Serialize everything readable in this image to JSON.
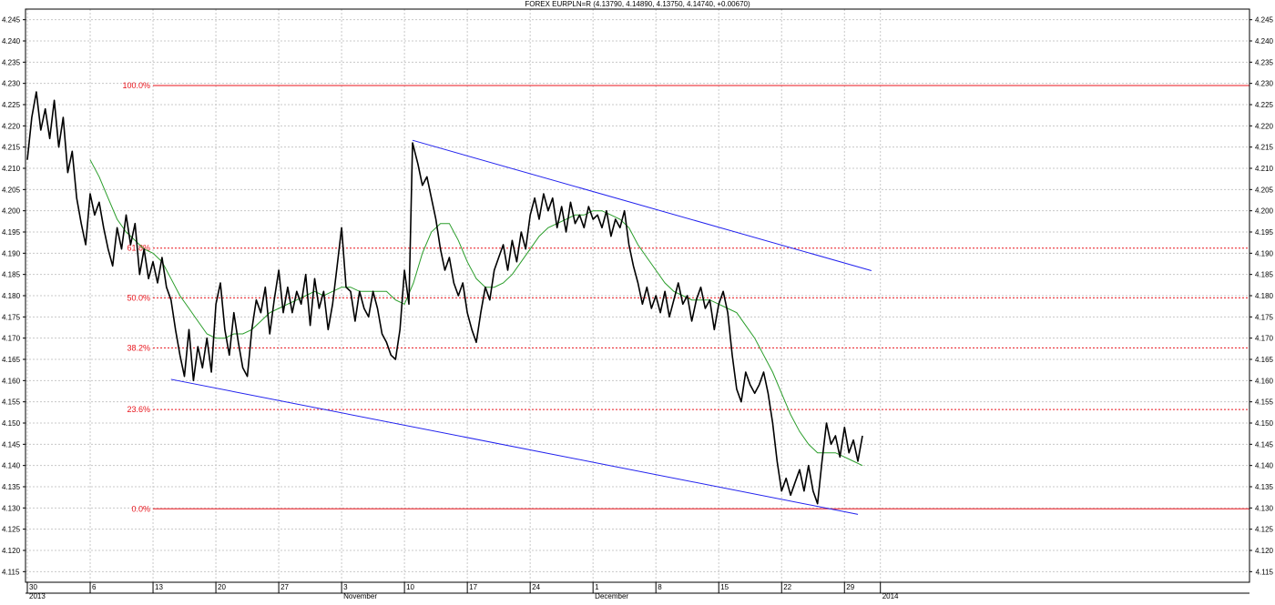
{
  "header": {
    "title": "FOREX EURPLN=R (4.13790, 4.14890, 4.13750, 4.14740, +0.00670)"
  },
  "colors": {
    "price": "#000000",
    "moving_average": "#2a9d2a",
    "channel": "#2222ee",
    "fibonacci": "#e8141c",
    "grid": "#c8c8c8",
    "background": "#ffffff"
  },
  "chart_data": {
    "type": "line",
    "title": "FOREX EURPLN=R (4.13790, 4.14890, 4.13750, 4.14740, +0.00670)",
    "xlabel": "",
    "ylabel": "",
    "ylim": [
      4.1125,
      4.2475
    ],
    "y_ticks": [
      "4.115",
      "4.120",
      "4.125",
      "4.130",
      "4.135",
      "4.140",
      "4.145",
      "4.150",
      "4.155",
      "4.160",
      "4.165",
      "4.170",
      "4.175",
      "4.180",
      "4.185",
      "4.190",
      "4.195",
      "4.200",
      "4.205",
      "4.210",
      "4.215",
      "4.220",
      "4.225",
      "4.230",
      "4.235",
      "4.240",
      "4.245"
    ],
    "x_ticks": [
      {
        "label": "30",
        "sub": "2013",
        "day": 0
      },
      {
        "label": "6",
        "sub": "",
        "day": 7
      },
      {
        "label": "13",
        "sub": "",
        "day": 14
      },
      {
        "label": "20",
        "sub": "",
        "day": 21
      },
      {
        "label": "27",
        "sub": "",
        "day": 28
      },
      {
        "label": "3",
        "sub": "November",
        "day": 35
      },
      {
        "label": "10",
        "sub": "",
        "day": 42
      },
      {
        "label": "17",
        "sub": "",
        "day": 49
      },
      {
        "label": "24",
        "sub": "",
        "day": 56
      },
      {
        "label": "1",
        "sub": "December",
        "day": 63
      },
      {
        "label": "8",
        "sub": "",
        "day": 70
      },
      {
        "label": "15",
        "sub": "",
        "day": 77
      },
      {
        "label": "22",
        "sub": "",
        "day": 84
      },
      {
        "label": "29",
        "sub": "",
        "day": 91
      },
      {
        "label": "",
        "sub": "2014",
        "day": 95
      }
    ],
    "grid": true,
    "fibonacci": [
      {
        "label": "100.0%",
        "value": 4.2295,
        "style": "solid"
      },
      {
        "label": "61.8%",
        "value": 4.1912,
        "style": "dashed"
      },
      {
        "label": "50.0%",
        "value": 4.1795,
        "style": "dashed"
      },
      {
        "label": "38.2%",
        "value": 4.1677,
        "style": "dashed"
      },
      {
        "label": "23.6%",
        "value": 4.1532,
        "style": "dashed"
      },
      {
        "label": "0.0%",
        "value": 4.1298,
        "style": "solid"
      }
    ],
    "channel_lines": [
      {
        "name": "upper",
        "points": [
          [
            42.9,
            4.2166
          ],
          [
            94.0,
            4.1859
          ]
        ]
      },
      {
        "name": "lower",
        "points": [
          [
            16.0,
            4.1603
          ],
          [
            92.5,
            4.1285
          ]
        ]
      }
    ],
    "series": [
      {
        "name": "price",
        "points": [
          [
            0.0,
            4.212
          ],
          [
            0.5,
            4.222
          ],
          [
            1.0,
            4.228
          ],
          [
            1.5,
            4.219
          ],
          [
            2.0,
            4.224
          ],
          [
            2.5,
            4.217
          ],
          [
            3.0,
            4.226
          ],
          [
            3.5,
            4.215
          ],
          [
            4.0,
            4.222
          ],
          [
            4.5,
            4.209
          ],
          [
            5.0,
            4.214
          ],
          [
            5.5,
            4.203
          ],
          [
            6.0,
            4.197
          ],
          [
            6.5,
            4.192
          ],
          [
            7.0,
            4.204
          ],
          [
            7.5,
            4.199
          ],
          [
            8.0,
            4.202
          ],
          [
            8.5,
            4.196
          ],
          [
            9.0,
            4.191
          ],
          [
            9.5,
            4.187
          ],
          [
            10.0,
            4.196
          ],
          [
            10.5,
            4.191
          ],
          [
            11.0,
            4.199
          ],
          [
            11.5,
            4.192
          ],
          [
            12.0,
            4.197
          ],
          [
            12.5,
            4.185
          ],
          [
            13.0,
            4.191
          ],
          [
            13.5,
            4.184
          ],
          [
            14.0,
            4.188
          ],
          [
            14.5,
            4.183
          ],
          [
            15.0,
            4.189
          ],
          [
            15.5,
            4.182
          ],
          [
            16.0,
            4.179
          ],
          [
            16.5,
            4.172
          ],
          [
            17.0,
            4.166
          ],
          [
            17.5,
            4.161
          ],
          [
            18.0,
            4.172
          ],
          [
            18.5,
            4.16
          ],
          [
            19.0,
            4.168
          ],
          [
            19.5,
            4.163
          ],
          [
            20.0,
            4.17
          ],
          [
            20.5,
            4.162
          ],
          [
            21.0,
            4.178
          ],
          [
            21.5,
            4.183
          ],
          [
            22.0,
            4.172
          ],
          [
            22.5,
            4.166
          ],
          [
            23.0,
            4.176
          ],
          [
            23.5,
            4.169
          ],
          [
            24.0,
            4.163
          ],
          [
            24.5,
            4.161
          ],
          [
            25.0,
            4.172
          ],
          [
            25.5,
            4.179
          ],
          [
            26.0,
            4.176
          ],
          [
            26.5,
            4.182
          ],
          [
            27.0,
            4.171
          ],
          [
            27.5,
            4.179
          ],
          [
            28.0,
            4.186
          ],
          [
            28.5,
            4.176
          ],
          [
            29.0,
            4.182
          ],
          [
            29.5,
            4.176
          ],
          [
            30.0,
            4.181
          ],
          [
            30.5,
            4.178
          ],
          [
            31.0,
            4.185
          ],
          [
            31.5,
            4.173
          ],
          [
            32.0,
            4.184
          ],
          [
            32.5,
            4.177
          ],
          [
            33.0,
            4.181
          ],
          [
            33.5,
            4.172
          ],
          [
            34.0,
            4.178
          ],
          [
            34.5,
            4.187
          ],
          [
            35.0,
            4.196
          ],
          [
            35.5,
            4.182
          ],
          [
            36.0,
            4.181
          ],
          [
            36.5,
            4.174
          ],
          [
            37.0,
            4.181
          ],
          [
            37.5,
            4.177
          ],
          [
            38.0,
            4.175
          ],
          [
            38.5,
            4.181
          ],
          [
            39.0,
            4.177
          ],
          [
            39.5,
            4.171
          ],
          [
            40.0,
            4.169
          ],
          [
            40.5,
            4.166
          ],
          [
            41.0,
            4.165
          ],
          [
            41.5,
            4.172
          ],
          [
            42.0,
            4.186
          ],
          [
            42.5,
            4.178
          ],
          [
            42.9,
            4.216
          ],
          [
            43.5,
            4.211
          ],
          [
            44.0,
            4.206
          ],
          [
            44.5,
            4.208
          ],
          [
            45.0,
            4.203
          ],
          [
            45.5,
            4.198
          ],
          [
            46.0,
            4.191
          ],
          [
            46.5,
            4.186
          ],
          [
            47.0,
            4.189
          ],
          [
            47.5,
            4.183
          ],
          [
            48.0,
            4.18
          ],
          [
            48.5,
            4.183
          ],
          [
            49.0,
            4.176
          ],
          [
            49.5,
            4.172
          ],
          [
            50.0,
            4.169
          ],
          [
            50.5,
            4.176
          ],
          [
            51.0,
            4.182
          ],
          [
            51.5,
            4.179
          ],
          [
            52.0,
            4.186
          ],
          [
            52.5,
            4.189
          ],
          [
            53.0,
            4.192
          ],
          [
            53.5,
            4.186
          ],
          [
            54.0,
            4.193
          ],
          [
            54.5,
            4.188
          ],
          [
            55.0,
            4.195
          ],
          [
            55.5,
            4.191
          ],
          [
            56.0,
            4.199
          ],
          [
            56.5,
            4.203
          ],
          [
            57.0,
            4.198
          ],
          [
            57.5,
            4.204
          ],
          [
            58.0,
            4.2
          ],
          [
            58.5,
            4.203
          ],
          [
            59.0,
            4.196
          ],
          [
            59.5,
            4.201
          ],
          [
            60.0,
            4.195
          ],
          [
            60.5,
            4.202
          ],
          [
            61.0,
            4.197
          ],
          [
            61.5,
            4.199
          ],
          [
            62.0,
            4.196
          ],
          [
            62.5,
            4.201
          ],
          [
            63.0,
            4.198
          ],
          [
            63.5,
            4.199
          ],
          [
            64.0,
            4.196
          ],
          [
            64.5,
            4.2
          ],
          [
            65.0,
            4.194
          ],
          [
            65.5,
            4.198
          ],
          [
            66.0,
            4.196
          ],
          [
            66.5,
            4.2
          ],
          [
            67.0,
            4.192
          ],
          [
            67.5,
            4.187
          ],
          [
            68.0,
            4.183
          ],
          [
            68.5,
            4.178
          ],
          [
            69.0,
            4.182
          ],
          [
            69.5,
            4.177
          ],
          [
            70.0,
            4.18
          ],
          [
            70.5,
            4.176
          ],
          [
            71.0,
            4.181
          ],
          [
            71.5,
            4.175
          ],
          [
            72.0,
            4.179
          ],
          [
            72.5,
            4.183
          ],
          [
            73.0,
            4.178
          ],
          [
            73.5,
            4.18
          ],
          [
            74.0,
            4.174
          ],
          [
            74.5,
            4.179
          ],
          [
            75.0,
            4.182
          ],
          [
            75.5,
            4.177
          ],
          [
            76.0,
            4.179
          ],
          [
            76.5,
            4.172
          ],
          [
            77.0,
            4.178
          ],
          [
            77.5,
            4.181
          ],
          [
            78.0,
            4.176
          ],
          [
            78.5,
            4.166
          ],
          [
            79.0,
            4.158
          ],
          [
            79.5,
            4.155
          ],
          [
            80.0,
            4.162
          ],
          [
            80.5,
            4.159
          ],
          [
            81.0,
            4.157
          ],
          [
            81.5,
            4.159
          ],
          [
            82.0,
            4.162
          ],
          [
            82.5,
            4.157
          ],
          [
            83.0,
            4.15
          ],
          [
            83.5,
            4.141
          ],
          [
            84.0,
            4.134
          ],
          [
            84.5,
            4.137
          ],
          [
            85.0,
            4.133
          ],
          [
            85.5,
            4.136
          ],
          [
            86.0,
            4.139
          ],
          [
            86.5,
            4.134
          ],
          [
            87.0,
            4.14
          ],
          [
            87.5,
            4.134
          ],
          [
            88.0,
            4.131
          ],
          [
            88.5,
            4.141
          ],
          [
            89.0,
            4.15
          ],
          [
            89.5,
            4.145
          ],
          [
            90.0,
            4.147
          ],
          [
            90.5,
            4.142
          ],
          [
            91.0,
            4.149
          ],
          [
            91.5,
            4.143
          ],
          [
            92.0,
            4.146
          ],
          [
            92.5,
            4.141
          ],
          [
            93.0,
            4.147
          ]
        ]
      },
      {
        "name": "moving_average",
        "points": [
          [
            7.0,
            4.212
          ],
          [
            8.0,
            4.208
          ],
          [
            9.0,
            4.203
          ],
          [
            10.0,
            4.198
          ],
          [
            11.0,
            4.195
          ],
          [
            12.0,
            4.193
          ],
          [
            13.0,
            4.191
          ],
          [
            14.0,
            4.19
          ],
          [
            15.0,
            4.188
          ],
          [
            16.0,
            4.184
          ],
          [
            17.0,
            4.18
          ],
          [
            18.0,
            4.177
          ],
          [
            19.0,
            4.174
          ],
          [
            20.0,
            4.171
          ],
          [
            21.0,
            4.17
          ],
          [
            22.0,
            4.17
          ],
          [
            23.0,
            4.171
          ],
          [
            24.0,
            4.171
          ],
          [
            25.0,
            4.172
          ],
          [
            26.0,
            4.174
          ],
          [
            27.0,
            4.176
          ],
          [
            28.0,
            4.177
          ],
          [
            29.0,
            4.178
          ],
          [
            30.0,
            4.179
          ],
          [
            31.0,
            4.18
          ],
          [
            32.0,
            4.181
          ],
          [
            33.0,
            4.18
          ],
          [
            34.0,
            4.181
          ],
          [
            35.0,
            4.182
          ],
          [
            36.0,
            4.182
          ],
          [
            37.0,
            4.181
          ],
          [
            38.0,
            4.181
          ],
          [
            39.0,
            4.181
          ],
          [
            40.0,
            4.181
          ],
          [
            41.0,
            4.179
          ],
          [
            42.0,
            4.178
          ],
          [
            43.0,
            4.183
          ],
          [
            44.0,
            4.19
          ],
          [
            45.0,
            4.195
          ],
          [
            46.0,
            4.197
          ],
          [
            47.0,
            4.197
          ],
          [
            48.0,
            4.193
          ],
          [
            49.0,
            4.188
          ],
          [
            50.0,
            4.184
          ],
          [
            51.0,
            4.182
          ],
          [
            52.0,
            4.182
          ],
          [
            53.0,
            4.183
          ],
          [
            54.0,
            4.185
          ],
          [
            55.0,
            4.188
          ],
          [
            56.0,
            4.191
          ],
          [
            57.0,
            4.194
          ],
          [
            58.0,
            4.196
          ],
          [
            59.0,
            4.197
          ],
          [
            60.0,
            4.198
          ],
          [
            61.0,
            4.199
          ],
          [
            62.0,
            4.199
          ],
          [
            63.0,
            4.2
          ],
          [
            64.0,
            4.2
          ],
          [
            65.0,
            4.199
          ],
          [
            66.0,
            4.198
          ],
          [
            67.0,
            4.196
          ],
          [
            68.0,
            4.192
          ],
          [
            69.0,
            4.189
          ],
          [
            70.0,
            4.186
          ],
          [
            71.0,
            4.183
          ],
          [
            72.0,
            4.181
          ],
          [
            73.0,
            4.18
          ],
          [
            74.0,
            4.179
          ],
          [
            75.0,
            4.179
          ],
          [
            76.0,
            4.179
          ],
          [
            77.0,
            4.178
          ],
          [
            78.0,
            4.177
          ],
          [
            79.0,
            4.176
          ],
          [
            80.0,
            4.173
          ],
          [
            81.0,
            4.17
          ],
          [
            82.0,
            4.166
          ],
          [
            83.0,
            4.162
          ],
          [
            84.0,
            4.157
          ],
          [
            85.0,
            4.152
          ],
          [
            86.0,
            4.148
          ],
          [
            87.0,
            4.145
          ],
          [
            88.0,
            4.143
          ],
          [
            89.0,
            4.143
          ],
          [
            90.0,
            4.143
          ],
          [
            91.0,
            4.142
          ],
          [
            92.0,
            4.141
          ],
          [
            93.0,
            4.14
          ]
        ]
      }
    ]
  }
}
